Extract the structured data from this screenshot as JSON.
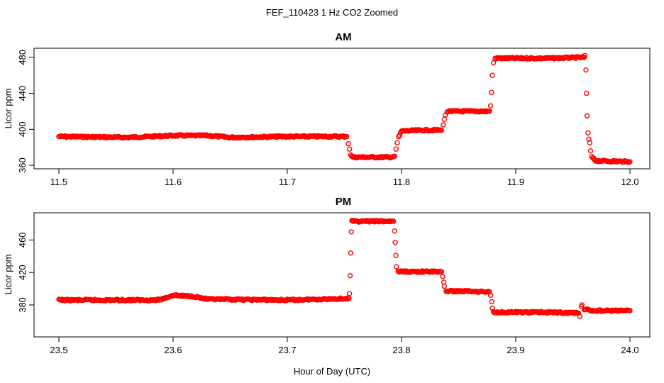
{
  "figure": {
    "title": "FEF_110423  1 Hz CO2 Zoomed",
    "xlabel": "Hour of Day (UTC)",
    "point_color": "#ff0000"
  },
  "chart_data": [
    {
      "type": "scatter",
      "title": "AM",
      "xlabel": "",
      "ylabel": "Licor ppm",
      "xlim": [
        11.5,
        12.0
      ],
      "ylim": [
        360,
        487
      ],
      "xticks": [
        "11.5",
        "11.6",
        "11.7",
        "11.8",
        "11.9",
        "12.0"
      ],
      "yticks": [
        "360",
        "400",
        "440",
        "480"
      ],
      "series": [
        {
          "marker": "open-circle",
          "color": "#ff0000",
          "x": [
            11.5,
            11.56,
            11.6,
            11.63,
            11.65,
            11.7,
            11.752,
            11.7535,
            11.7545,
            11.7555,
            11.757,
            11.77,
            11.79,
            11.794,
            11.7952,
            11.7962,
            11.7975,
            11.8,
            11.82,
            11.835,
            11.8365,
            11.8375,
            11.8385,
            11.84,
            11.86,
            11.877,
            11.878,
            11.8788,
            11.8795,
            11.8805,
            11.882,
            11.9,
            11.93,
            11.96,
            11.9605,
            11.9615,
            11.962,
            11.9625,
            11.9632,
            11.964,
            11.9648,
            11.9655,
            11.9665,
            11.97,
            12.0
          ],
          "y": [
            392,
            391,
            393,
            393,
            391,
            392,
            392,
            384,
            378,
            372,
            369,
            369,
            369,
            370,
            378,
            385,
            391,
            398,
            399,
            399,
            405,
            411,
            416,
            420,
            420,
            420,
            426,
            441,
            460,
            474,
            479,
            479,
            479,
            480,
            482,
            466,
            440,
            415,
            396,
            389,
            385,
            376,
            369,
            365,
            364
          ]
        }
      ]
    },
    {
      "type": "scatter",
      "title": "PM",
      "xlabel": "Hour of Day (UTC)",
      "ylabel": "Licor ppm",
      "xlim": [
        23.5,
        24.0
      ],
      "ylim": [
        345,
        490
      ],
      "xticks": [
        "23.5",
        "23.6",
        "23.7",
        "23.8",
        "23.9",
        "24.0"
      ],
      "yticks": [
        "380",
        "420",
        "460"
      ],
      "series": [
        {
          "marker": "open-circle",
          "color": "#ff0000",
          "x": [
            23.5,
            23.55,
            23.585,
            23.59,
            23.6,
            23.61,
            23.615,
            23.62,
            23.63,
            23.7,
            23.754,
            23.7545,
            23.755,
            23.7555,
            23.756,
            23.7565,
            23.758,
            23.77,
            23.793,
            23.794,
            23.7945,
            23.795,
            23.7955,
            23.797,
            23.82,
            23.835,
            23.836,
            23.837,
            23.8375,
            23.839,
            23.86,
            23.877,
            23.878,
            23.879,
            23.8795,
            23.8805,
            23.882,
            23.9,
            23.93,
            23.955,
            23.956,
            23.9575,
            23.958,
            23.96,
            23.966,
            23.98,
            24.0
          ],
          "y": [
            386,
            386,
            386,
            387,
            392,
            391,
            391,
            390,
            387,
            386,
            388,
            394,
            416,
            444,
            470,
            483,
            483,
            483,
            483,
            471,
            457,
            441,
            427,
            421,
            421,
            421,
            415,
            408,
            403,
            397,
            397,
            396,
            392,
            384,
            376,
            371,
            371,
            371,
            371,
            370,
            366,
            379,
            380,
            375,
            373,
            373,
            373
          ]
        }
      ]
    }
  ]
}
